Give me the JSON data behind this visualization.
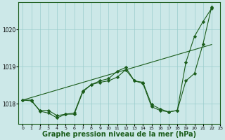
{
  "bg_color": "#cce8e8",
  "grid_color": "#99cccc",
  "line_color": "#1a5c1a",
  "marker_color": "#1a5c1a",
  "xlabel": "Graphe pression niveau de la mer (hPa)",
  "xlabel_fontsize": 7,
  "xlim": [
    -0.5,
    23
  ],
  "ylim": [
    1017.45,
    1020.75
  ],
  "yticks": [
    1018,
    1019,
    1020
  ],
  "xticks": [
    0,
    1,
    2,
    3,
    4,
    5,
    6,
    7,
    8,
    9,
    10,
    11,
    12,
    13,
    14,
    15,
    16,
    17,
    18,
    19,
    20,
    21,
    22,
    23
  ],
  "series1_x": [
    0,
    1,
    2,
    3,
    4,
    5,
    6,
    7,
    8,
    9,
    10,
    11,
    12,
    13,
    14,
    15,
    16,
    17,
    18,
    19,
    20,
    21,
    22
  ],
  "series1": [
    1018.1,
    1018.1,
    1017.8,
    1017.75,
    1017.62,
    1017.72,
    1017.72,
    1018.32,
    1018.52,
    1018.58,
    1018.62,
    1018.72,
    1018.92,
    1018.62,
    1018.55,
    1017.92,
    1017.82,
    1017.78,
    1017.82,
    1019.12,
    1019.82,
    1020.22,
    1020.58
  ],
  "series2_x": [
    0,
    1,
    2,
    3,
    4,
    5,
    6,
    7,
    8,
    9,
    10,
    11,
    12,
    13,
    14,
    15,
    16,
    17,
    18,
    19,
    20,
    21,
    22
  ],
  "series2": [
    1018.1,
    1018.08,
    1017.82,
    1017.82,
    1017.68,
    1017.72,
    1017.75,
    1018.35,
    1018.52,
    1018.62,
    1018.68,
    1018.88,
    1018.98,
    1018.62,
    1018.58,
    1017.98,
    1017.86,
    1017.78,
    1017.82,
    1018.62,
    1018.82,
    1019.62,
    1020.62
  ],
  "series3_x": [
    0,
    22
  ],
  "series3": [
    1018.1,
    1019.6
  ]
}
